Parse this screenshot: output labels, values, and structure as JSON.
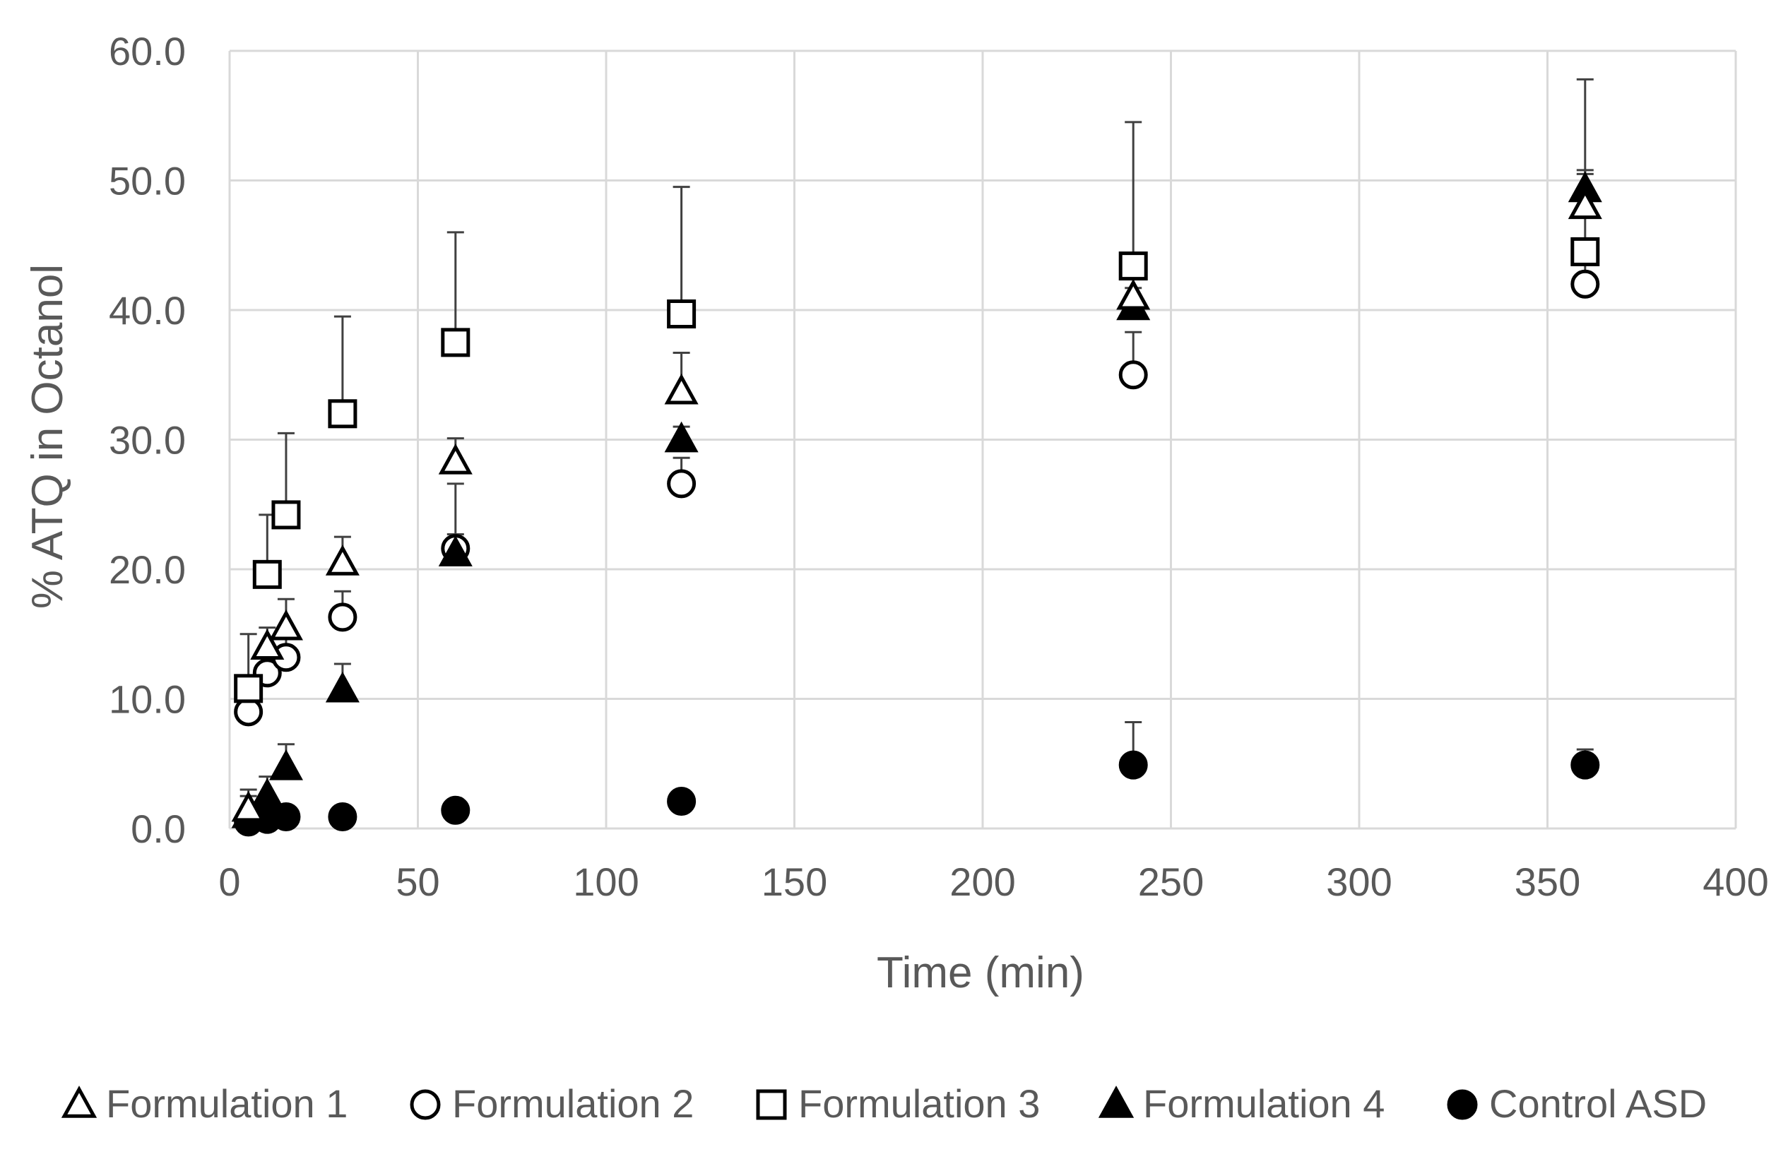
{
  "chart_data": {
    "type": "scatter",
    "title": "",
    "xlabel": "Time (min)",
    "ylabel": "% ATQ in Octanol",
    "xlim": [
      0,
      400
    ],
    "ylim": [
      0,
      60
    ],
    "x_ticks": [
      0,
      50,
      100,
      150,
      200,
      250,
      300,
      350,
      400
    ],
    "x_tick_labels": [
      "0",
      "50",
      "100",
      "150",
      "200",
      "250",
      "300",
      "350",
      "400"
    ],
    "y_ticks": [
      0,
      10,
      20,
      30,
      40,
      50,
      60
    ],
    "y_tick_labels": [
      "0.0",
      "10.0",
      "20.0",
      "30.0",
      "40.0",
      "50.0",
      "60.0"
    ],
    "grid": true,
    "legend_position": "bottom",
    "colors": {
      "axis_text": "#595959",
      "grid": "#d9d9d9",
      "marker": "#000000"
    },
    "series": [
      {
        "name": "Formulation 1",
        "marker": "open-triangle",
        "x": [
          5,
          10,
          15,
          30,
          60,
          120,
          240,
          360
        ],
        "y": [
          1.5,
          14.0,
          15.5,
          20.5,
          28.3,
          33.7,
          41.0,
          48.0
        ],
        "error": [
          1.5,
          1.5,
          2.2,
          2.0,
          1.8,
          3.0,
          2.5,
          2.5
        ]
      },
      {
        "name": "Formulation 2",
        "marker": "open-circle",
        "x": [
          5,
          10,
          15,
          30,
          60,
          120,
          240,
          360
        ],
        "y": [
          9.0,
          12.0,
          13.2,
          16.3,
          21.6,
          26.6,
          35.0,
          42.0
        ],
        "error": [
          1.5,
          1.5,
          2.0,
          2.0,
          5.0,
          2.0,
          3.3,
          2.0
        ]
      },
      {
        "name": "Formulation 3",
        "marker": "open-square",
        "x": [
          5,
          10,
          15,
          30,
          60,
          120,
          240,
          360
        ],
        "y": [
          10.8,
          19.6,
          24.2,
          32.0,
          37.5,
          39.7,
          43.4,
          44.5
        ],
        "error": [
          4.2,
          4.6,
          6.3,
          7.5,
          8.5,
          9.8,
          11.1,
          13.3
        ]
      },
      {
        "name": "Formulation 4",
        "marker": "filled-triangle",
        "x": [
          5,
          10,
          15,
          30,
          60,
          120,
          240,
          360
        ],
        "y": [
          1.0,
          2.5,
          4.7,
          10.7,
          21.2,
          30.0,
          40.2,
          49.3
        ],
        "error": [
          1.5,
          1.5,
          1.8,
          2.0,
          1.5,
          1.0,
          1.5,
          1.5
        ]
      },
      {
        "name": "Control ASD",
        "marker": "filled-circle",
        "x": [
          5,
          10,
          15,
          30,
          60,
          120,
          240,
          360
        ],
        "y": [
          0.5,
          0.7,
          0.9,
          0.9,
          1.4,
          2.1,
          4.9,
          4.9
        ],
        "error": [
          0.3,
          0.3,
          0.3,
          0.5,
          0.5,
          0.8,
          3.3,
          1.2
        ]
      }
    ]
  }
}
